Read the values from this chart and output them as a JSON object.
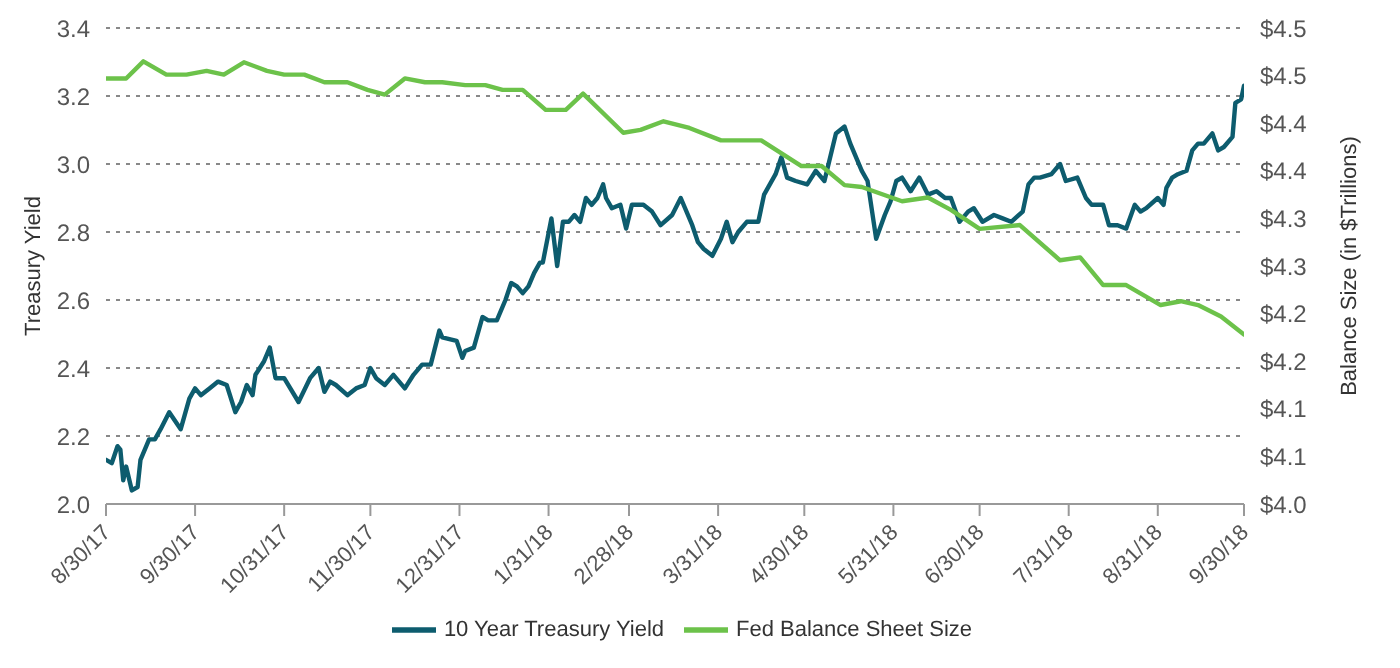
{
  "chart_data": {
    "type": "line",
    "ylabel": "Treasury Yield",
    "y2label": "Balance Size (in $Trillions)",
    "xlim": [
      "2017-08-30",
      "2018-09-30"
    ],
    "xticks": [
      {
        "value": "2017-08-30",
        "label": "8/30/17"
      },
      {
        "value": "2017-09-30",
        "label": "9/30/17"
      },
      {
        "value": "2017-10-31",
        "label": "10/31/17"
      },
      {
        "value": "2017-11-30",
        "label": "11/30/17"
      },
      {
        "value": "2017-12-31",
        "label": "12/31/17"
      },
      {
        "value": "2018-01-31",
        "label": "1/31/18"
      },
      {
        "value": "2018-02-28",
        "label": "2/28/18"
      },
      {
        "value": "2018-03-31",
        "label": "3/31/18"
      },
      {
        "value": "2018-04-30",
        "label": "4/30/18"
      },
      {
        "value": "2018-05-31",
        "label": "5/31/18"
      },
      {
        "value": "2018-06-30",
        "label": "6/30/18"
      },
      {
        "value": "2018-07-31",
        "label": "7/31/18"
      },
      {
        "value": "2018-08-31",
        "label": "8/31/18"
      },
      {
        "value": "2018-09-30",
        "label": "9/30/18"
      }
    ],
    "ylim": [
      2,
      3.4
    ],
    "yticks": [
      {
        "value": 2,
        "label": "2.0"
      },
      2.2,
      2.4,
      2.6,
      2.8,
      {
        "value": 3,
        "label": "3.0"
      },
      3.2,
      3.4
    ],
    "y2lim": [
      4,
      4.5
    ],
    "y2ticks": [
      {
        "value": 4,
        "label": "$4.0"
      },
      {
        "value": 4.05,
        "label": "$4.1"
      },
      {
        "value": 4.1,
        "label": "$4.1"
      },
      {
        "value": 4.15,
        "label": "$4.2"
      },
      {
        "value": 4.2,
        "label": "$4.2"
      },
      {
        "value": 4.25,
        "label": "$4.3"
      },
      {
        "value": 4.3,
        "label": "$4.3"
      },
      {
        "value": 4.35,
        "label": "$4.4"
      },
      {
        "value": 4.4,
        "label": "$4.4"
      },
      {
        "value": 4.45,
        "label": "$4.5"
      },
      {
        "value": 4.5,
        "label": "$4.5"
      }
    ],
    "grid": "y",
    "legend": "bottom",
    "marker": "none",
    "line_style": "solid",
    "series": [
      {
        "name": "10 Year Treasury Yield",
        "color": "#0d5c6e",
        "x": [
          "2017-08-30",
          "2017-09-01",
          "2017-09-03",
          "2017-09-04",
          "2017-09-05",
          "2017-09-06",
          "2017-09-08",
          "2017-09-10",
          "2017-09-11",
          "2017-09-14",
          "2017-09-16",
          "2017-09-18",
          "2017-09-21",
          "2017-09-25",
          "2017-09-28",
          "2017-09-30",
          "2017-10-02",
          "2017-10-05",
          "2017-10-08",
          "2017-10-11",
          "2017-10-14",
          "2017-10-16",
          "2017-10-18",
          "2017-10-20",
          "2017-10-21",
          "2017-10-24",
          "2017-10-26",
          "2017-10-28",
          "2017-10-31",
          "2017-11-05",
          "2017-11-09",
          "2017-11-12",
          "2017-11-14",
          "2017-11-16",
          "2017-11-18",
          "2017-11-22",
          "2017-11-25",
          "2017-11-28",
          "2017-11-30",
          "2017-12-02",
          "2017-12-05",
          "2017-12-08",
          "2017-12-12",
          "2017-12-15",
          "2017-12-18",
          "2017-12-21",
          "2017-12-24",
          "2017-12-25",
          "2017-12-30",
          "2018-01-01",
          "2018-01-02",
          "2018-01-05",
          "2018-01-08",
          "2018-01-10",
          "2018-01-13",
          "2018-01-16",
          "2018-01-18",
          "2018-01-20",
          "2018-01-22",
          "2018-01-24",
          "2018-01-26",
          "2018-01-28",
          "2018-01-29",
          "2018-02-01",
          "2018-02-03",
          "2018-02-05",
          "2018-02-07",
          "2018-02-09",
          "2018-02-11",
          "2018-02-13",
          "2018-02-15",
          "2018-02-17",
          "2018-02-19",
          "2018-02-20",
          "2018-02-22",
          "2018-02-25",
          "2018-02-27",
          "2018-03-01",
          "2018-03-05",
          "2018-03-08",
          "2018-03-11",
          "2018-03-15",
          "2018-03-18",
          "2018-03-22",
          "2018-03-24",
          "2018-03-26",
          "2018-03-29",
          "2018-04-01",
          "2018-04-03",
          "2018-04-05",
          "2018-04-07",
          "2018-04-10",
          "2018-04-12",
          "2018-04-14",
          "2018-04-16",
          "2018-04-20",
          "2018-04-22",
          "2018-04-24",
          "2018-04-27",
          "2018-05-01",
          "2018-05-04",
          "2018-05-07",
          "2018-05-11",
          "2018-05-14",
          "2018-05-16",
          "2018-05-20",
          "2018-05-22",
          "2018-05-25",
          "2018-05-28",
          "2018-05-30",
          "2018-06-01",
          "2018-06-03",
          "2018-06-06",
          "2018-06-09",
          "2018-06-12",
          "2018-06-15",
          "2018-06-18",
          "2018-06-20",
          "2018-06-23",
          "2018-06-26",
          "2018-06-28",
          "2018-07-01",
          "2018-07-05",
          "2018-07-08",
          "2018-07-11",
          "2018-07-15",
          "2018-07-17",
          "2018-07-19",
          "2018-07-21",
          "2018-07-25",
          "2018-07-28",
          "2018-07-30",
          "2018-08-03",
          "2018-08-06",
          "2018-08-08",
          "2018-08-12",
          "2018-08-14",
          "2018-08-17",
          "2018-08-20",
          "2018-08-23",
          "2018-08-25",
          "2018-08-27",
          "2018-08-31",
          "2018-09-02",
          "2018-09-03",
          "2018-09-05",
          "2018-09-07",
          "2018-09-10",
          "2018-09-12",
          "2018-09-14",
          "2018-09-16",
          "2018-09-19",
          "2018-09-21",
          "2018-09-23",
          "2018-09-26",
          "2018-09-27",
          "2018-09-29",
          "2018-09-30"
        ],
        "values": [
          2.13,
          2.12,
          2.17,
          2.16,
          2.07,
          2.11,
          2.04,
          2.05,
          2.13,
          2.19,
          2.19,
          2.22,
          2.27,
          2.22,
          2.31,
          2.34,
          2.32,
          2.34,
          2.36,
          2.35,
          2.27,
          2.3,
          2.35,
          2.32,
          2.38,
          2.42,
          2.46,
          2.37,
          2.37,
          2.3,
          2.37,
          2.4,
          2.33,
          2.36,
          2.35,
          2.32,
          2.34,
          2.35,
          2.4,
          2.37,
          2.35,
          2.38,
          2.34,
          2.38,
          2.41,
          2.41,
          2.51,
          2.49,
          2.48,
          2.43,
          2.45,
          2.46,
          2.55,
          2.54,
          2.54,
          2.6,
          2.65,
          2.64,
          2.62,
          2.64,
          2.68,
          2.71,
          2.71,
          2.84,
          2.7,
          2.83,
          2.83,
          2.85,
          2.83,
          2.9,
          2.88,
          2.9,
          2.94,
          2.9,
          2.87,
          2.88,
          2.81,
          2.88,
          2.88,
          2.86,
          2.82,
          2.85,
          2.9,
          2.82,
          2.77,
          2.75,
          2.73,
          2.78,
          2.83,
          2.77,
          2.8,
          2.83,
          2.83,
          2.83,
          2.91,
          2.97,
          3.02,
          2.96,
          2.95,
          2.94,
          2.98,
          2.95,
          3.09,
          3.11,
          3.06,
          2.98,
          2.95,
          2.78,
          2.85,
          2.89,
          2.95,
          2.96,
          2.92,
          2.96,
          2.91,
          2.92,
          2.9,
          2.9,
          2.83,
          2.86,
          2.87,
          2.83,
          2.85,
          2.84,
          2.83,
          2.86,
          2.94,
          2.96,
          2.96,
          2.97,
          3,
          2.95,
          2.96,
          2.9,
          2.88,
          2.88,
          2.82,
          2.82,
          2.81,
          2.88,
          2.86,
          2.87,
          2.9,
          2.88,
          2.93,
          2.96,
          2.97,
          2.98,
          3.04,
          3.06,
          3.06,
          3.09,
          3.04,
          3.05,
          3.08,
          3.18,
          3.19,
          3.23
        ]
      },
      {
        "name": "Fed Balance Sheet Size",
        "color": "#6cc24a",
        "axis": "y2",
        "x": [
          "2017-08-30",
          "2017-09-06",
          "2017-09-12",
          "2017-09-20",
          "2017-09-27",
          "2017-10-04",
          "2017-10-10",
          "2017-10-17",
          "2017-10-25",
          "2017-10-31",
          "2017-11-07",
          "2017-11-14",
          "2017-11-22",
          "2017-11-29",
          "2017-12-05",
          "2017-12-12",
          "2017-12-19",
          "2017-12-25",
          "2018-01-02",
          "2018-01-09",
          "2018-01-15",
          "2018-01-22",
          "2018-01-30",
          "2018-02-06",
          "2018-02-12",
          "2018-02-26",
          "2018-03-04",
          "2018-03-12",
          "2018-03-21",
          "2018-04-01",
          "2018-04-15",
          "2018-04-29",
          "2018-05-06",
          "2018-05-14",
          "2018-05-20",
          "2018-06-03",
          "2018-06-12",
          "2018-06-20",
          "2018-06-30",
          "2018-07-14",
          "2018-07-28",
          "2018-08-04",
          "2018-08-12",
          "2018-08-20",
          "2018-09-01",
          "2018-09-08",
          "2018-09-14",
          "2018-09-22",
          "2018-09-30"
        ],
        "values": [
          4.447,
          4.447,
          4.465,
          4.451,
          4.451,
          4.455,
          4.451,
          4.464,
          4.455,
          4.451,
          4.451,
          4.443,
          4.443,
          4.435,
          4.43,
          4.447,
          4.443,
          4.443,
          4.44,
          4.44,
          4.435,
          4.435,
          4.414,
          4.414,
          4.431,
          4.39,
          4.393,
          4.402,
          4.395,
          4.382,
          4.382,
          4.355,
          4.355,
          4.335,
          4.333,
          4.318,
          4.322,
          4.309,
          4.289,
          4.293,
          4.256,
          4.259,
          4.23,
          4.23,
          4.209,
          4.213,
          4.209,
          4.197,
          4.178
        ]
      }
    ]
  }
}
